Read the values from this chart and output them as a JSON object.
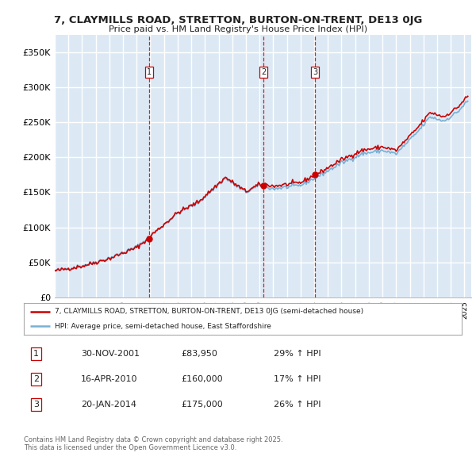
{
  "title_line1": "7, CLAYMILLS ROAD, STRETTON, BURTON-ON-TRENT, DE13 0JG",
  "title_line2": "Price paid vs. HM Land Registry's House Price Index (HPI)",
  "ylabel_ticks": [
    "£0",
    "£50K",
    "£100K",
    "£150K",
    "£200K",
    "£250K",
    "£300K",
    "£350K"
  ],
  "ytick_values": [
    0,
    50000,
    100000,
    150000,
    200000,
    250000,
    300000,
    350000
  ],
  "ylim": [
    0,
    375000
  ],
  "xlim_start": 1995.0,
  "xlim_end": 2025.5,
  "background_color": "#dce9f5",
  "grid_color": "#ffffff",
  "sale_color": "#cc0000",
  "hpi_color": "#7ab0d4",
  "sale_prices": [
    83950,
    160000,
    175000
  ],
  "sale_date_floats": [
    2001.917,
    2010.292,
    2014.054
  ],
  "vline_color": "#cc0000",
  "legend_sale": "7, CLAYMILLS ROAD, STRETTON, BURTON-ON-TRENT, DE13 0JG (semi-detached house)",
  "legend_hpi": "HPI: Average price, semi-detached house, East Staffordshire",
  "table_data": [
    [
      "1",
      "30-NOV-2001",
      "£83,950",
      "29% ↑ HPI"
    ],
    [
      "2",
      "16-APR-2010",
      "£160,000",
      "17% ↑ HPI"
    ],
    [
      "3",
      "20-JAN-2014",
      "£175,000",
      "26% ↑ HPI"
    ]
  ],
  "footnote": "Contains HM Land Registry data © Crown copyright and database right 2025.\nThis data is licensed under the Open Government Licence v3.0.",
  "hpi_anchors_x": [
    1995.0,
    1997.0,
    1999.0,
    2001.0,
    2002.5,
    2004.0,
    2005.5,
    2007.5,
    2009.0,
    2010.0,
    2011.0,
    2013.0,
    2014.5,
    2016.0,
    2017.5,
    2019.0,
    2020.0,
    2021.5,
    2022.5,
    2023.5,
    2024.5,
    2025.2
  ],
  "hpi_anchors_y": [
    38000,
    45000,
    56000,
    72000,
    95000,
    120000,
    135000,
    170000,
    150000,
    160000,
    155000,
    160000,
    175000,
    192000,
    205000,
    210000,
    205000,
    235000,
    258000,
    252000,
    265000,
    280000
  ]
}
